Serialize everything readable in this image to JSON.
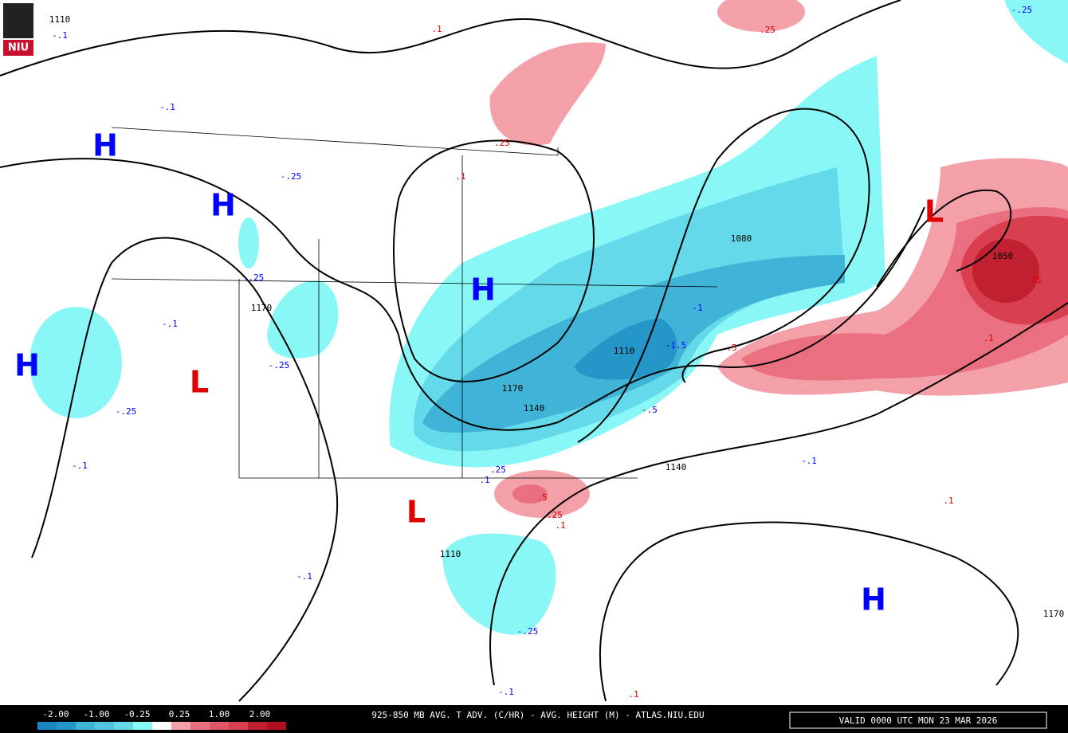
{
  "logo": {
    "text": "NIU"
  },
  "map": {
    "pressure_centers": [
      "H",
      "H",
      "H",
      "H",
      "L",
      "L",
      "L",
      "H"
    ],
    "contour_labels": [
      "1110",
      "-.1",
      ".1",
      ".25",
      "-.25",
      ".25",
      ".1",
      "-.25",
      "-.1",
      "-.25",
      "1170",
      "-.1",
      "-.25",
      "-.25",
      "-.1",
      "1080",
      "1050",
      ".75",
      ".1",
      ".5",
      "-1.5",
      "1110",
      "-1",
      "1170",
      "1140",
      "-.5",
      ".25",
      ".1",
      ".5",
      ".25",
      ".1",
      "1140",
      "-.1",
      ".1",
      "1110",
      "-.1",
      "-.25",
      "1170",
      ".1",
      "-.1"
    ]
  },
  "colorbar": {
    "labels": [
      "-2.00",
      "-1.00",
      "-0.25",
      "0.25",
      "1.00",
      "2.00"
    ]
  },
  "footer": {
    "title": "925-850 MB AVG. T ADV. (C/HR) - AVG. HEIGHT (M) - ATLAS.NIU.EDU",
    "valid": "VALID 0000 UTC MON 23 MAR 2026"
  }
}
